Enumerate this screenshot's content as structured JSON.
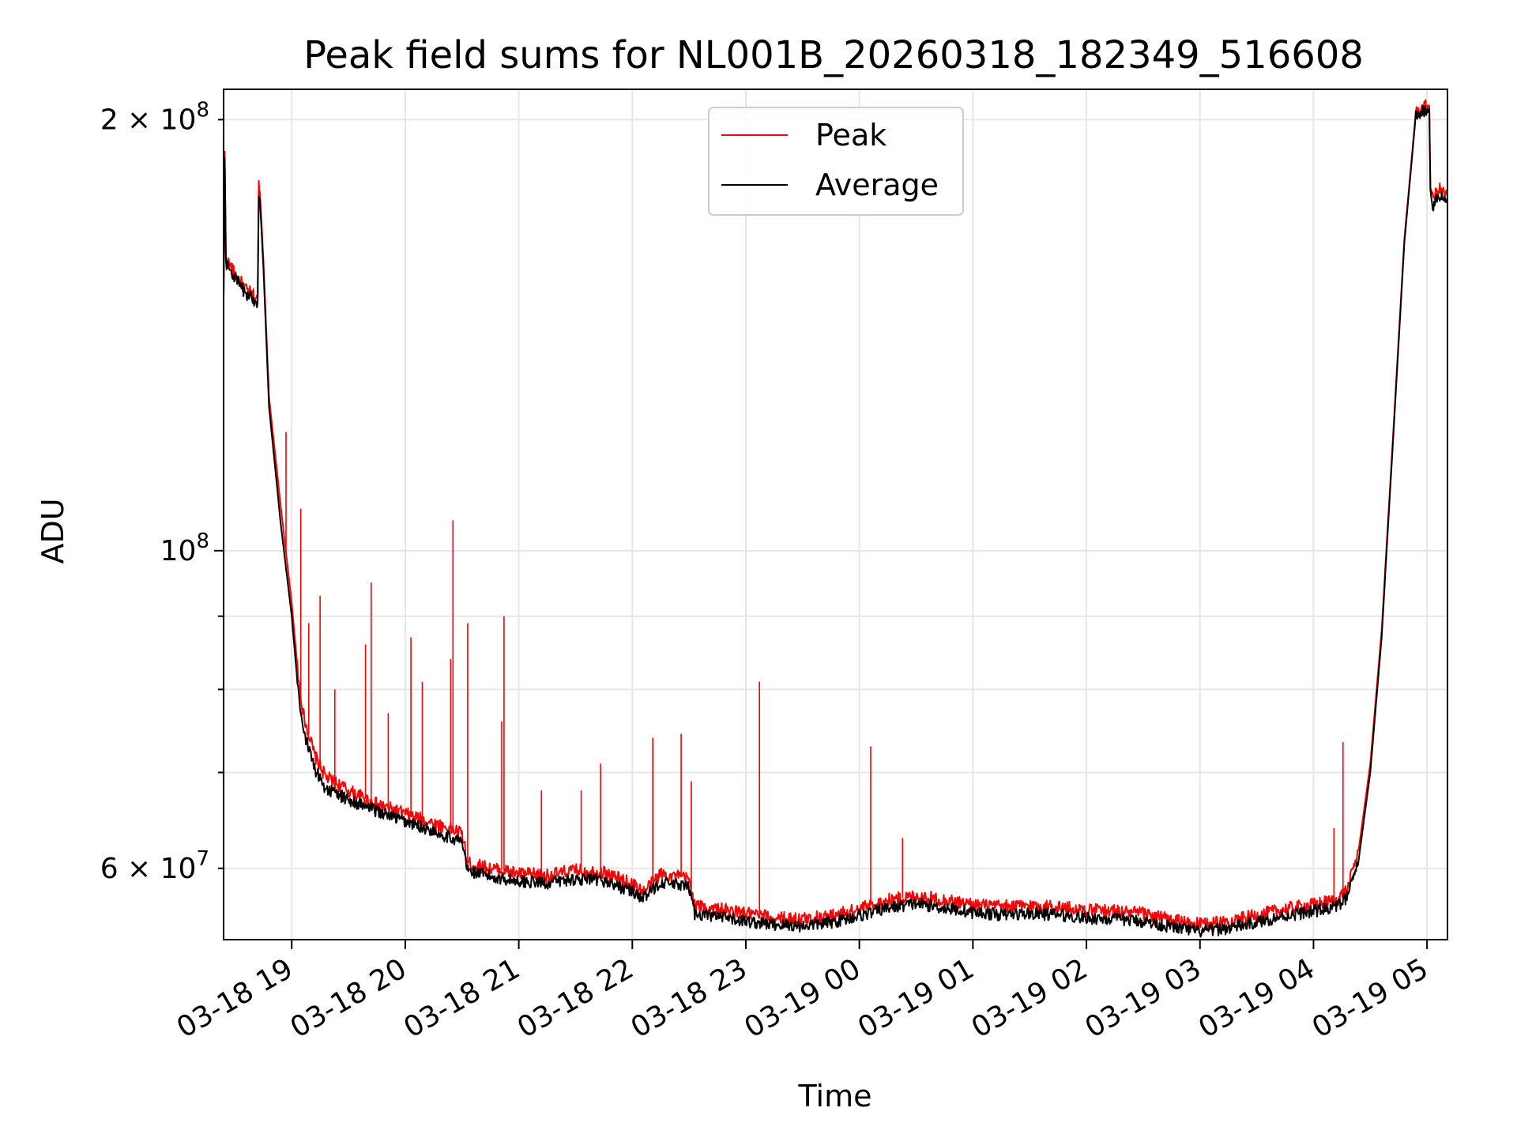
{
  "chart_data": {
    "type": "line",
    "title": "Peak field sums for NL001B_20260318_182349_516608",
    "xlabel": "Time",
    "ylabel": "ADU",
    "yscale": "log",
    "ylim": [
      53500000,
      210000000
    ],
    "xlim_hours": [
      18.4,
      29.18
    ],
    "grid": true,
    "legend_position": "upper-center",
    "x_ticks": [
      {
        "hour": 19,
        "label": "03-18 19"
      },
      {
        "hour": 20,
        "label": "03-18 20"
      },
      {
        "hour": 21,
        "label": "03-18 21"
      },
      {
        "hour": 22,
        "label": "03-18 22"
      },
      {
        "hour": 23,
        "label": "03-18 23"
      },
      {
        "hour": 24,
        "label": "03-19 00"
      },
      {
        "hour": 25,
        "label": "03-19 01"
      },
      {
        "hour": 26,
        "label": "03-19 02"
      },
      {
        "hour": 27,
        "label": "03-19 03"
      },
      {
        "hour": 28,
        "label": "03-19 04"
      },
      {
        "hour": 29,
        "label": "03-19 05"
      }
    ],
    "y_ticks_major": [
      {
        "value": 100000000,
        "mantissa": "10",
        "exponent": "8"
      }
    ],
    "y_ticks_minor": [
      {
        "value": 60000000,
        "mantissa": "6 × 10",
        "exponent": "7"
      },
      {
        "value": 200000000,
        "mantissa": "2 × 10",
        "exponent": "8"
      }
    ],
    "y_minor_unlabeled": [
      70000000,
      80000000,
      90000000
    ],
    "series": [
      {
        "name": "Peak",
        "color": "#ff0000",
        "x": [
          18.4,
          18.41,
          18.42,
          18.5,
          18.6,
          18.7,
          18.71,
          18.72,
          18.75,
          18.8,
          18.9,
          19.0,
          19.05,
          19.1,
          19.2,
          19.3,
          19.5,
          19.75,
          20.0,
          20.25,
          20.5,
          20.55,
          20.75,
          21.0,
          21.25,
          21.5,
          21.75,
          22.0,
          22.1,
          22.25,
          22.5,
          22.55,
          22.75,
          23.0,
          23.25,
          23.5,
          23.75,
          24.0,
          24.25,
          24.5,
          24.75,
          25.0,
          25.25,
          25.5,
          25.75,
          26.0,
          26.25,
          26.5,
          26.75,
          27.0,
          27.25,
          27.5,
          27.75,
          28.0,
          28.2,
          28.3,
          28.4,
          28.5,
          28.6,
          28.7,
          28.8,
          28.9,
          29.0,
          29.02,
          29.03,
          29.05,
          29.1,
          29.18
        ],
        "values": [
          150000000,
          190000000,
          160000000,
          156000000,
          152000000,
          150000000,
          180000000,
          178000000,
          160000000,
          128000000,
          108000000,
          92000000,
          83000000,
          77000000,
          72000000,
          69500000,
          68000000,
          66500000,
          65500000,
          64500000,
          63500000,
          60500000,
          60000000,
          59500000,
          59300000,
          59800000,
          59600000,
          58500000,
          57800000,
          59500000,
          59000000,
          56500000,
          56200000,
          55800000,
          55400000,
          55300000,
          55600000,
          56200000,
          57000000,
          57400000,
          57000000,
          56600000,
          56400000,
          56500000,
          56400000,
          56100000,
          56000000,
          55800000,
          55200000,
          54800000,
          55100000,
          55600000,
          56200000,
          56600000,
          57000000,
          58000000,
          62000000,
          71000000,
          88000000,
          120000000,
          165000000,
          202000000,
          204500000,
          204500000,
          180000000,
          176000000,
          179000000,
          177000000
        ]
      },
      {
        "name": "Average",
        "color": "#000000",
        "x": [
          18.4,
          18.41,
          18.42,
          18.5,
          18.6,
          18.7,
          18.71,
          18.72,
          18.75,
          18.8,
          18.9,
          19.0,
          19.05,
          19.1,
          19.2,
          19.3,
          19.5,
          19.75,
          20.0,
          20.25,
          20.5,
          20.55,
          20.75,
          21.0,
          21.25,
          21.5,
          21.75,
          22.0,
          22.1,
          22.25,
          22.5,
          22.55,
          22.75,
          23.0,
          23.25,
          23.5,
          23.75,
          24.0,
          24.25,
          24.5,
          24.75,
          25.0,
          25.25,
          25.5,
          25.75,
          26.0,
          26.25,
          26.5,
          26.75,
          27.0,
          27.25,
          27.5,
          27.75,
          28.0,
          28.2,
          28.3,
          28.4,
          28.5,
          28.6,
          28.7,
          28.8,
          28.9,
          29.0,
          29.02,
          29.03,
          29.05,
          29.1,
          29.18
        ],
        "values": [
          149000000,
          188000000,
          159000000,
          155000000,
          151000000,
          149000000,
          178000000,
          176000000,
          158000000,
          126000000,
          105000000,
          90000000,
          81000000,
          75000000,
          70500000,
          68200000,
          67000000,
          65800000,
          64700000,
          63700000,
          62600000,
          59800000,
          59200000,
          58800000,
          58600000,
          59000000,
          58800000,
          57800000,
          57200000,
          58700000,
          58200000,
          55800000,
          55500000,
          55100000,
          54800000,
          54700000,
          55000000,
          55600000,
          56300000,
          56700000,
          56300000,
          55900000,
          55700000,
          55800000,
          55700000,
          55400000,
          55300000,
          55100000,
          54600000,
          54200000,
          54500000,
          55000000,
          55600000,
          56000000,
          56400000,
          57300000,
          61000000,
          70000000,
          87000000,
          119000000,
          164000000,
          201000000,
          203500000,
          203500000,
          178000000,
          174000000,
          177000000,
          175000000
        ]
      }
    ],
    "peak_spikes": [
      {
        "hour": 18.95,
        "value": 121000000
      },
      {
        "hour": 19.08,
        "value": 107000000
      },
      {
        "hour": 19.15,
        "value": 89000000
      },
      {
        "hour": 19.25,
        "value": 93000000
      },
      {
        "hour": 19.38,
        "value": 80000000
      },
      {
        "hour": 19.65,
        "value": 86000000
      },
      {
        "hour": 19.7,
        "value": 95000000
      },
      {
        "hour": 19.85,
        "value": 77000000
      },
      {
        "hour": 20.05,
        "value": 87000000
      },
      {
        "hour": 20.15,
        "value": 81000000
      },
      {
        "hour": 20.4,
        "value": 84000000
      },
      {
        "hour": 20.42,
        "value": 105000000
      },
      {
        "hour": 20.55,
        "value": 89000000
      },
      {
        "hour": 20.85,
        "value": 76000000
      },
      {
        "hour": 20.87,
        "value": 90000000
      },
      {
        "hour": 21.2,
        "value": 68000000
      },
      {
        "hour": 21.55,
        "value": 68000000
      },
      {
        "hour": 21.72,
        "value": 71000000
      },
      {
        "hour": 22.18,
        "value": 74000000
      },
      {
        "hour": 22.43,
        "value": 74500000
      },
      {
        "hour": 22.52,
        "value": 69000000
      },
      {
        "hour": 23.12,
        "value": 81000000
      },
      {
        "hour": 24.1,
        "value": 73000000
      },
      {
        "hour": 24.38,
        "value": 63000000
      },
      {
        "hour": 28.18,
        "value": 64000000
      },
      {
        "hour": 28.26,
        "value": 73500000
      }
    ]
  }
}
